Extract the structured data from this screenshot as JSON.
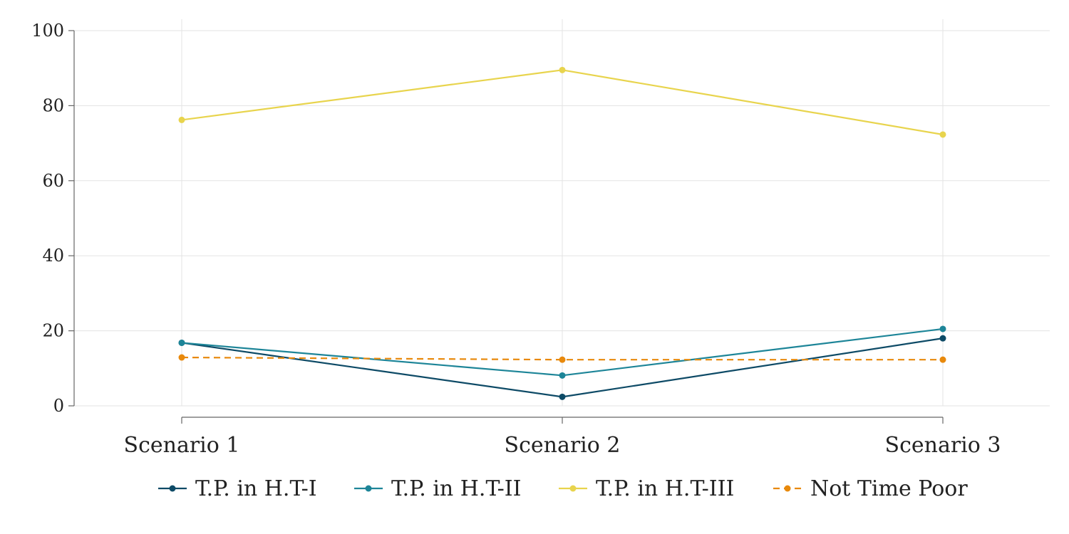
{
  "chart_data": {
    "type": "line",
    "title": "",
    "xlabel": "",
    "ylabel": "",
    "categories": [
      "Scenario 1",
      "Scenario 2",
      "Scenario 3"
    ],
    "ylim": [
      0,
      100
    ],
    "yticks": [
      0,
      20,
      40,
      60,
      80,
      100
    ],
    "grid": true,
    "legend_position": "bottom",
    "series": [
      {
        "name": "T.P. in H.T-I",
        "values": [
          16.8,
          2.4,
          18.0
        ],
        "color": "#0d4a66",
        "dashed": false
      },
      {
        "name": "T.P. in H.T-II",
        "values": [
          16.8,
          8.1,
          20.5
        ],
        "color": "#1d8598",
        "dashed": false
      },
      {
        "name": "T.P. in H.T-III",
        "values": [
          76.2,
          89.5,
          72.3
        ],
        "color": "#e8d44d",
        "dashed": false
      },
      {
        "name": "Not Time Poor",
        "values": [
          12.9,
          12.3,
          12.3
        ],
        "color": "#e8890c",
        "dashed": true
      }
    ]
  }
}
